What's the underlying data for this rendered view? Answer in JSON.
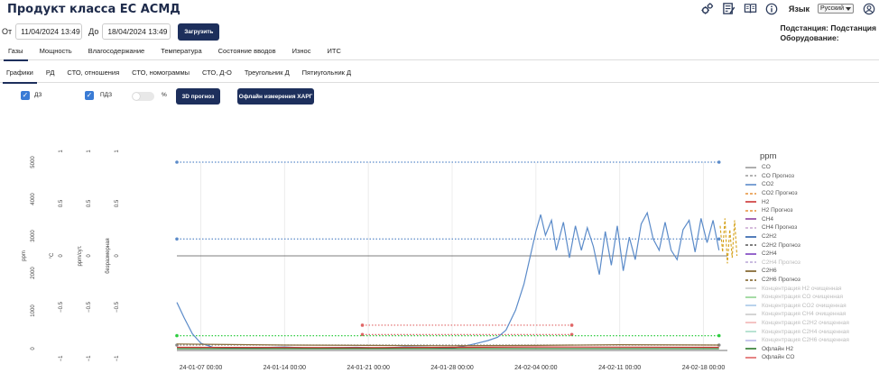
{
  "app": {
    "title": "Продукт класса ЕС АСМД"
  },
  "header": {
    "icons": [
      "gears-icon",
      "edit-document-icon",
      "book-icon",
      "info-icon"
    ],
    "language_label": "Язык",
    "language_value": "Русский",
    "user_icon": "user-icon"
  },
  "controls": {
    "from_label": "От",
    "from_value": "11/04/2024 13:49",
    "to_label": "До",
    "to_value": "18/04/2024 13:49",
    "load_label": "Загрузить"
  },
  "station": {
    "substation_label": "Подстанция: Подстанция",
    "equipment_label": "Оборудование:"
  },
  "tabs_main": [
    {
      "label": "Газы",
      "active": true
    },
    {
      "label": "Мощность"
    },
    {
      "label": "Влагосодержание"
    },
    {
      "label": "Температура"
    },
    {
      "label": "Состояние вводов"
    },
    {
      "label": "Износ"
    },
    {
      "label": "ИТС"
    }
  ],
  "tabs_sub": [
    {
      "label": "Графики",
      "active": true
    },
    {
      "label": "РД"
    },
    {
      "label": "СТО, отношения"
    },
    {
      "label": "СТО, номограммы"
    },
    {
      "label": "СТО, Д-О"
    },
    {
      "label": "Треугольник Д"
    },
    {
      "label": "Пятиугольник Д"
    }
  ],
  "options": {
    "dz_label": "ДЗ",
    "dz_checked": true,
    "pdz_label": "ПДЗ",
    "pdz_checked": true,
    "percent_label": "%",
    "percent_on": false,
    "forecast_3d_label": "3D прогноз",
    "offline_harg_label": "Офлайн измерения ХАРГ"
  },
  "chart_data": {
    "type": "line",
    "axes": [
      {
        "title": "ppm",
        "ticks": [
          "0",
          "1000",
          "2000",
          "3000",
          "4000",
          "5000"
        ]
      },
      {
        "title": "°C",
        "ticks": [
          "−1",
          "−0.5",
          "0",
          "0.5",
          "1"
        ]
      },
      {
        "title": "ppm/сут.",
        "ticks": [
          "−1",
          "−0.5",
          "0",
          "0.5",
          "1"
        ]
      },
      {
        "title": "безразмерная",
        "ticks": [
          "−1",
          "−0.5",
          "0",
          "0.5",
          "1"
        ]
      }
    ],
    "ylim": [
      0,
      5000
    ],
    "x_tick_labels": [
      "24-01-07 00:00",
      "24-01-14 00:00",
      "24-01-21 00:00",
      "24-01-28 00:00",
      "24-02-04 00:00",
      "24-02-11 00:00",
      "24-02-18 00:00"
    ],
    "x_ticks_days": [
      7,
      14,
      21,
      28,
      35,
      42,
      49
    ],
    "xlim_days": [
      5,
      51
    ],
    "legend_title": "ppm",
    "series": [
      {
        "name": "CO2",
        "color": "#5b8bc9",
        "points": [
          [
            5,
            1260
          ],
          [
            5.6,
            850
          ],
          [
            6.3,
            420
          ],
          [
            7,
            170
          ],
          [
            8,
            60
          ],
          [
            10,
            40
          ],
          [
            12,
            50
          ],
          [
            14,
            70
          ],
          [
            16,
            40
          ],
          [
            18,
            50
          ],
          [
            20,
            60
          ],
          [
            22,
            40
          ],
          [
            24,
            70
          ],
          [
            26,
            60
          ],
          [
            28,
            40
          ],
          [
            29,
            90
          ],
          [
            30,
            160
          ],
          [
            31,
            240
          ],
          [
            31.8,
            330
          ],
          [
            32.5,
            520
          ],
          [
            33.3,
            1050
          ],
          [
            34,
            1750
          ],
          [
            34.5,
            2450
          ],
          [
            35,
            3150
          ],
          [
            35.4,
            3600
          ],
          [
            35.8,
            3050
          ],
          [
            36.3,
            3450
          ],
          [
            36.7,
            2650
          ],
          [
            37.3,
            3400
          ],
          [
            37.8,
            2450
          ],
          [
            38.3,
            3300
          ],
          [
            38.8,
            2650
          ],
          [
            39.3,
            3250
          ],
          [
            39.8,
            2750
          ],
          [
            40.3,
            2000
          ],
          [
            40.8,
            3150
          ],
          [
            41.3,
            2250
          ],
          [
            41.8,
            3300
          ],
          [
            42.3,
            2100
          ],
          [
            42.8,
            3000
          ],
          [
            43.3,
            2400
          ],
          [
            43.8,
            3350
          ],
          [
            44.3,
            3650
          ],
          [
            44.8,
            2950
          ],
          [
            45.3,
            2650
          ],
          [
            45.8,
            3400
          ],
          [
            46.3,
            2650
          ],
          [
            46.8,
            2400
          ],
          [
            47.3,
            3200
          ],
          [
            47.8,
            3450
          ],
          [
            48.3,
            2600
          ],
          [
            48.8,
            3500
          ],
          [
            49.3,
            2850
          ],
          [
            49.8,
            3450
          ],
          [
            50.3,
            2650
          ]
        ]
      },
      {
        "name": "CO2 Прогноз",
        "color": "#d4a017",
        "dashed": true,
        "points": [
          [
            50.4,
            3300
          ],
          [
            50.6,
            2600
          ],
          [
            50.8,
            3500
          ],
          [
            51,
            2300
          ],
          [
            51.2,
            3200
          ],
          [
            51.4,
            2450
          ],
          [
            51.6,
            3450
          ],
          [
            51.8,
            2500
          ]
        ]
      },
      {
        "name": "CO",
        "color": "#8a6d3b",
        "points": [
          [
            5,
            150
          ],
          [
            14,
            120
          ],
          [
            21,
            110
          ],
          [
            28,
            100
          ],
          [
            35,
            110
          ],
          [
            42,
            130
          ],
          [
            50.3,
            120
          ]
        ]
      },
      {
        "name": "H2",
        "color": "#cc3333",
        "points": [
          [
            5,
            60
          ],
          [
            21,
            50
          ],
          [
            35,
            70
          ],
          [
            50.3,
            60
          ]
        ]
      },
      {
        "name": "C2H2",
        "color": "#2c7a2c",
        "points": [
          [
            5,
            25
          ],
          [
            50.3,
            25
          ]
        ]
      }
    ],
    "threshold_lines": [
      {
        "color": "#5b8bc9",
        "y": 5000,
        "from_day": 5,
        "to_day": 50.3
      },
      {
        "color": "#5b8bc9",
        "y": 2950,
        "from_day": 5,
        "to_day": 50.3
      },
      {
        "color": "#e06666",
        "y": 650,
        "from_day": 20.5,
        "to_day": 38
      },
      {
        "color": "#e06666",
        "y": 400,
        "from_day": 20.5,
        "to_day": 38
      },
      {
        "color": "#2ecc40",
        "y": 370,
        "from_day": 5,
        "to_day": 50.3
      },
      {
        "color": "#888888",
        "y": 120,
        "from_day": 5,
        "to_day": 50.3
      }
    ]
  },
  "legend": [
    {
      "label": "CO",
      "color": "#9a9a9a",
      "style": "solid"
    },
    {
      "label": "CO Прогноз",
      "color": "#9a9a9a",
      "style": "dashed"
    },
    {
      "label": "CO2",
      "color": "#5b8bc9",
      "style": "solid"
    },
    {
      "label": "CO2 Прогноз",
      "color": "#e69138",
      "style": "dashed"
    },
    {
      "label": "H2",
      "color": "#cc3333",
      "style": "solid"
    },
    {
      "label": "H2 Прогноз",
      "color": "#e69138",
      "style": "dashed"
    },
    {
      "label": "CH4",
      "color": "#8e3d9e",
      "style": "solid"
    },
    {
      "label": "CH4 Прогноз",
      "color": "#c9a5d1",
      "style": "dashed"
    },
    {
      "label": "C2H2",
      "color": "#2a5ea8",
      "style": "solid"
    },
    {
      "label": "C2H2 Прогноз",
      "color": "#555555",
      "style": "dashed"
    },
    {
      "label": "C2H4",
      "color": "#7b3fc0",
      "style": "solid"
    },
    {
      "label": "C2H4 Прогноз",
      "color": "#b8a6d6",
      "style": "dashed",
      "faded": true
    },
    {
      "label": "C2H6",
      "color": "#7a5a1e",
      "style": "solid"
    },
    {
      "label": "C2H6 Прогноз",
      "color": "#7a5a1e",
      "style": "dashed"
    },
    {
      "label": "Концентрация H2 очищенная",
      "color": "#c9c9c9",
      "style": "solid",
      "faded": true
    },
    {
      "label": "Концентрация CO очищенная",
      "color": "#8fd48f",
      "style": "solid",
      "faded": true
    },
    {
      "label": "Концентрация CO2 очищенная",
      "color": "#a8c8e8",
      "style": "solid",
      "faded": true
    },
    {
      "label": "Концентрация CH4 очищенная",
      "color": "#c9c9c9",
      "style": "solid",
      "faded": true
    },
    {
      "label": "Концентрация C2H2 очищенная",
      "color": "#f2b6b6",
      "style": "solid",
      "faded": true
    },
    {
      "label": "Концентрация C2H4 очищенная",
      "color": "#a6dcc8",
      "style": "solid",
      "faded": true
    },
    {
      "label": "Концентрация C2H6 очищенная",
      "color": "#b8b8e8",
      "style": "solid",
      "faded": true
    },
    {
      "label": "Офлайн H2",
      "color": "#2c7a2c",
      "style": "solid"
    },
    {
      "label": "Офлайн CO",
      "color": "#e06666",
      "style": "solid"
    }
  ]
}
